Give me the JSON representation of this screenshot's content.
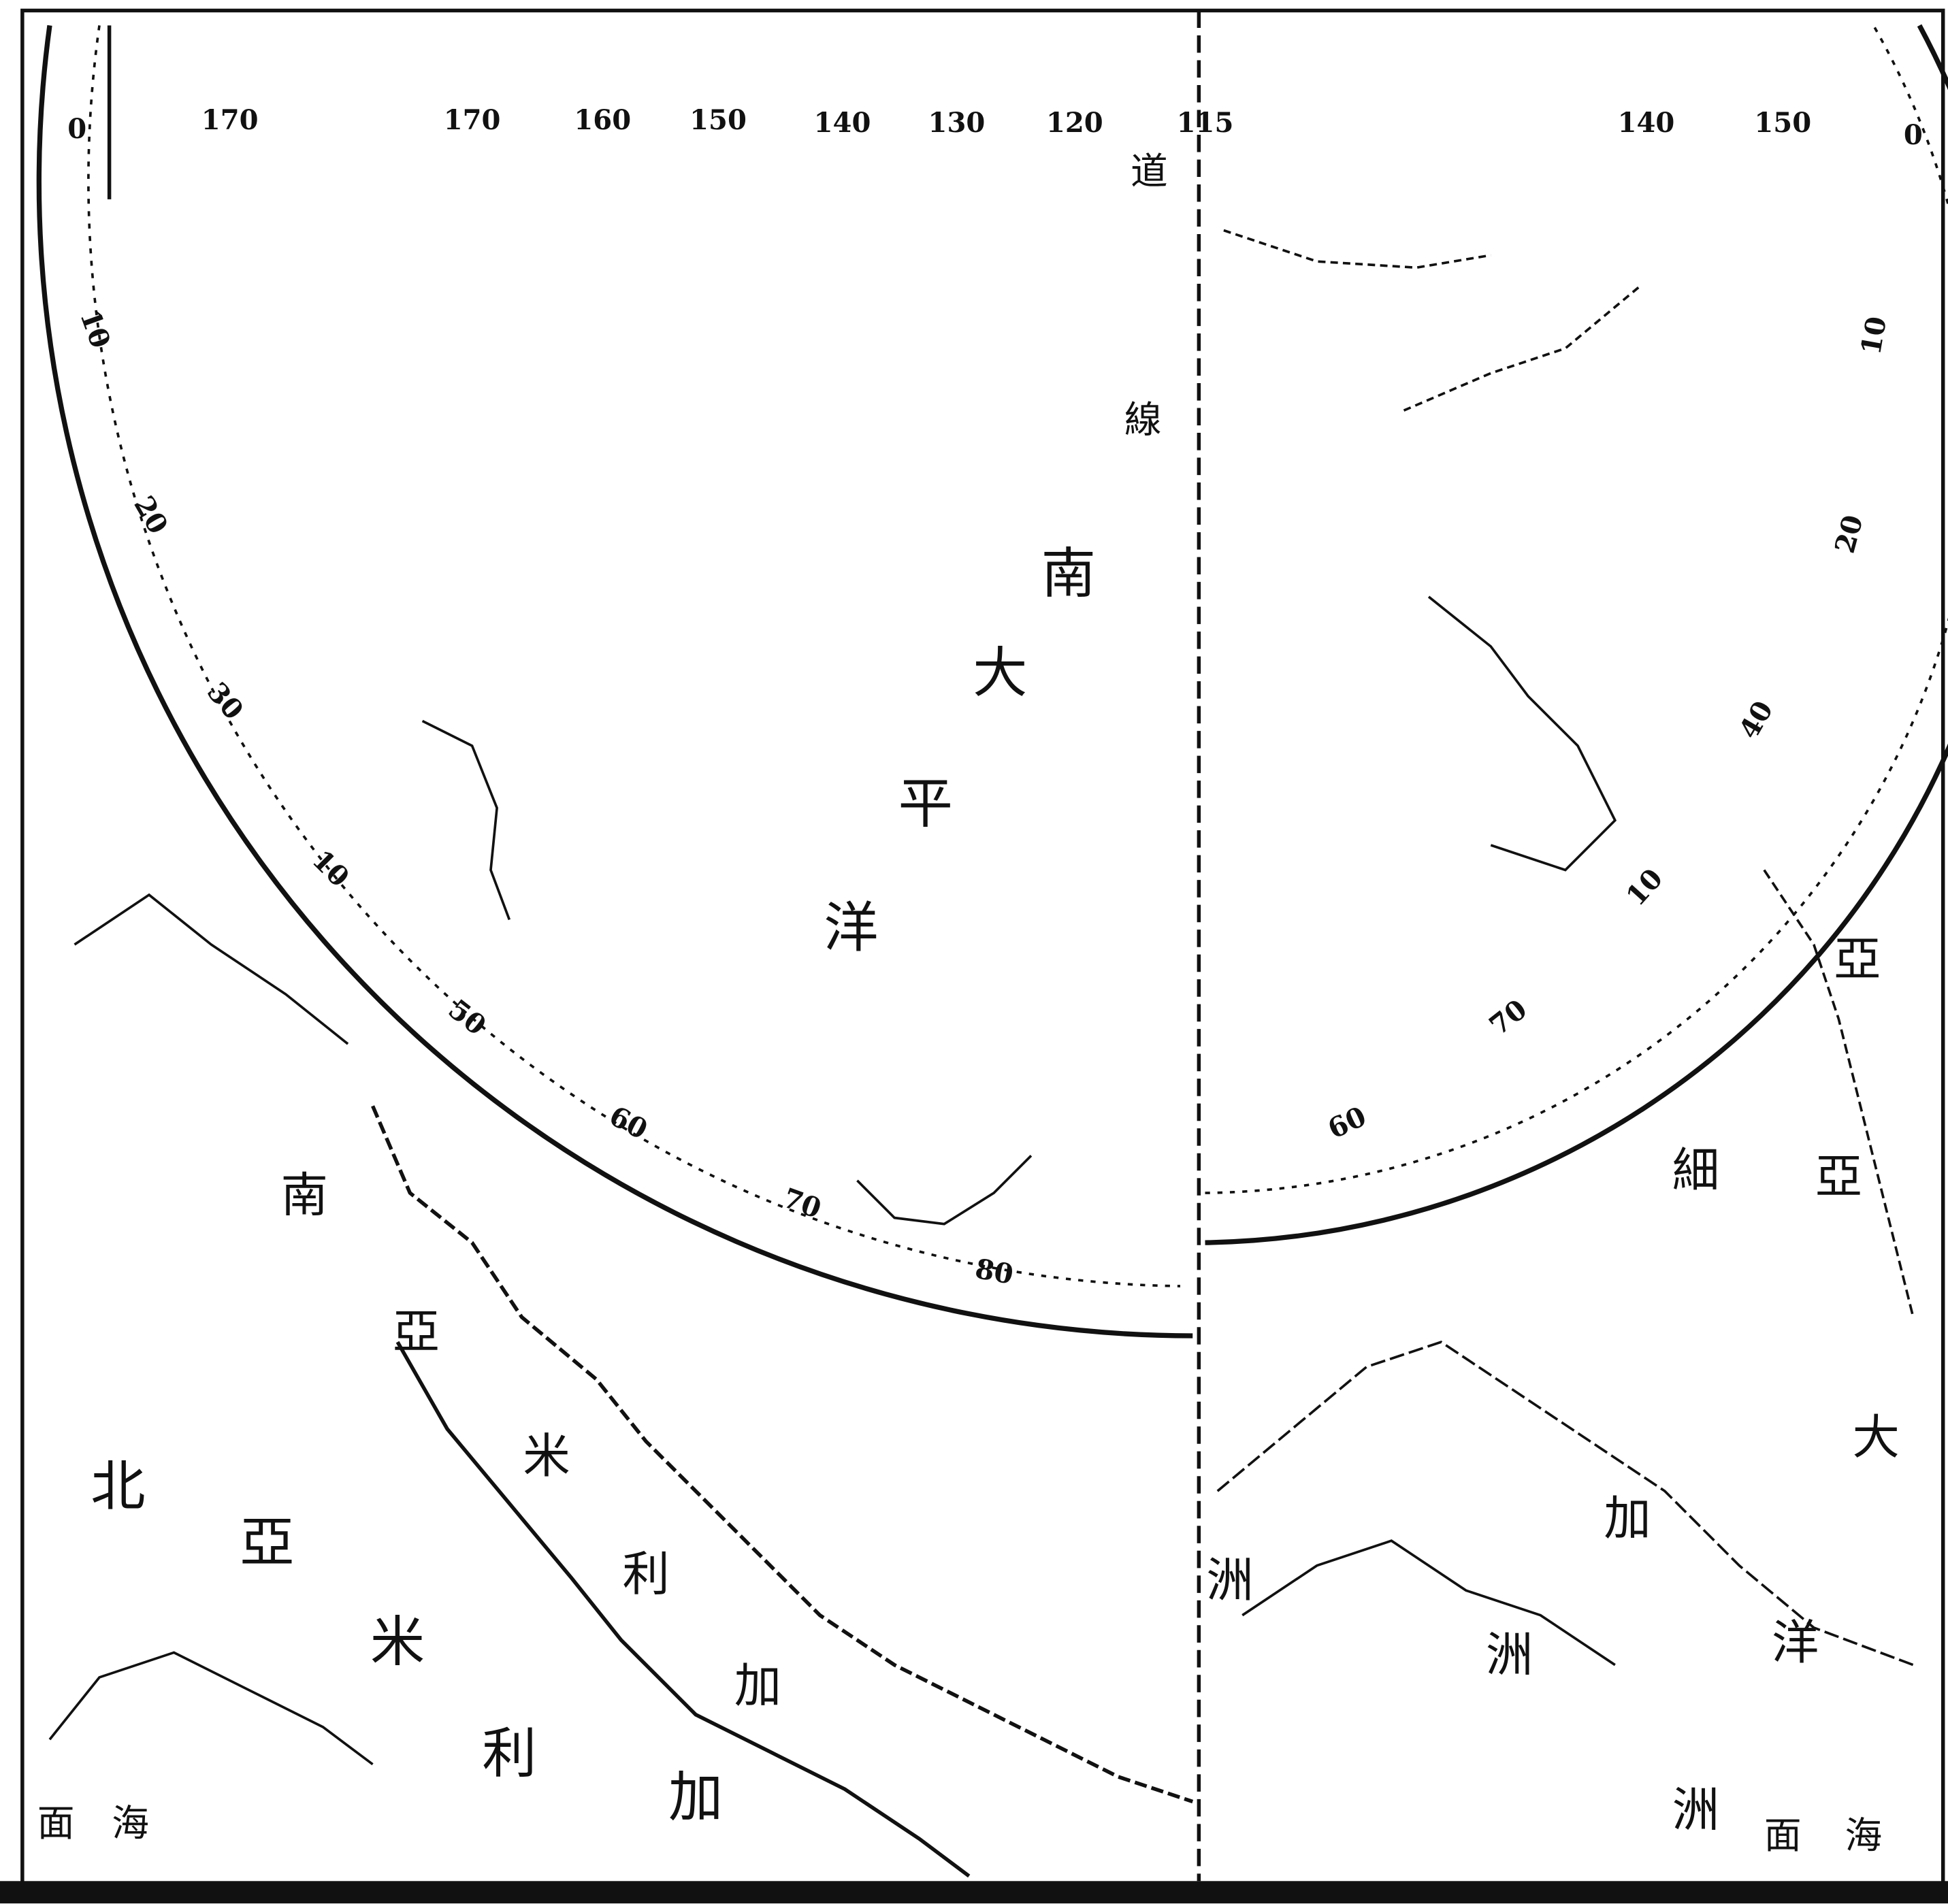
{
  "map": {
    "top_scale": [
      "0",
      "170",
      "170",
      "160",
      "150",
      "140",
      "130",
      "120",
      "115",
      "140",
      "150",
      "0"
    ],
    "left_rim_scale": [
      "10",
      "20",
      "30",
      "10",
      "50",
      "60",
      "70",
      "80"
    ],
    "right_rim_scale": [
      "10",
      "20",
      "40",
      "10",
      "70",
      "60"
    ],
    "ocean": [
      "南",
      "大",
      "平",
      "洋"
    ],
    "equator": [
      "道",
      "線"
    ],
    "south_america": [
      "南",
      "亞",
      "米",
      "利",
      "加"
    ],
    "north_america": [
      "北",
      "亞",
      "米",
      "利",
      "加"
    ],
    "asia_oceania": [
      "亞",
      "細",
      "亞",
      "大",
      "洋",
      "洲",
      "洲",
      "洲",
      "加"
    ],
    "corners": [
      "面",
      "海",
      "面",
      "海"
    ]
  }
}
